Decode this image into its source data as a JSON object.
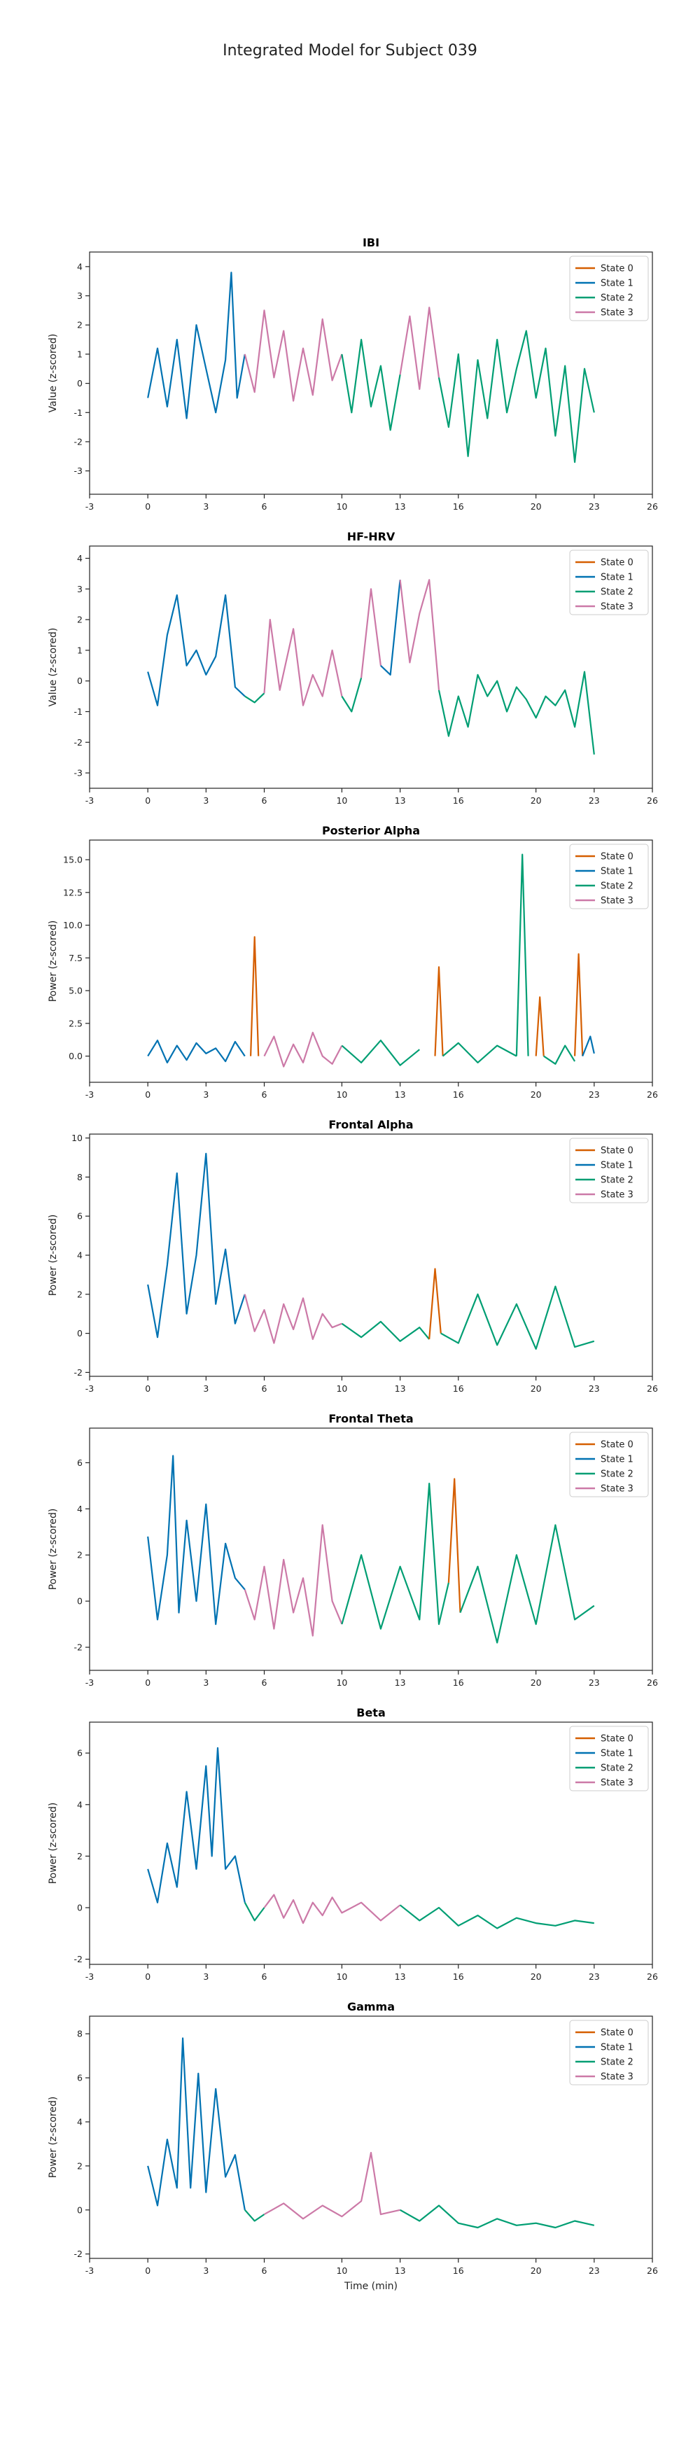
{
  "figure": {
    "title": "Integrated Model for Subject 039"
  },
  "state_colors": {
    "State 0": "#d55e00",
    "State 1": "#0072b2",
    "State 2": "#009e73",
    "State 3": "#cc79a7"
  },
  "chart_data": [
    {
      "type": "line",
      "title": "IBI",
      "xlabel": "",
      "ylabel": "Value (z-scored)",
      "xlim": [
        -3,
        26
      ],
      "ylim": [
        -3.8,
        4.5
      ],
      "xticks": [
        -3,
        0,
        3,
        6,
        10,
        13,
        16,
        20,
        23,
        26
      ],
      "yticks": [
        -3,
        -2,
        -1,
        0,
        1,
        2,
        3,
        4
      ],
      "legend": [
        "State 0",
        "State 1",
        "State 2",
        "State 3"
      ],
      "legend_position": "top-right",
      "segments": [
        {
          "state": "State 1",
          "t": [
            0,
            0.5,
            1,
            1.5,
            2,
            2.5,
            3,
            3.5,
            4,
            4.3,
            4.6,
            5
          ],
          "y": [
            -0.5,
            1.2,
            -0.8,
            1.5,
            -1.2,
            2.0,
            0.5,
            -1.0,
            0.8,
            3.8,
            -0.5,
            1.0
          ]
        },
        {
          "state": "State 3",
          "t": [
            5,
            5.5,
            6,
            6.5,
            7,
            7.5,
            8,
            8.5,
            9,
            9.5,
            10
          ],
          "y": [
            1.0,
            -0.3,
            2.5,
            0.2,
            1.8,
            -0.6,
            1.2,
            -0.4,
            2.2,
            0.1,
            1.0
          ]
        },
        {
          "state": "State 2",
          "t": [
            10,
            10.5,
            11,
            11.5,
            12,
            12.5,
            13
          ],
          "y": [
            1.0,
            -1.0,
            1.5,
            -0.8,
            0.6,
            -1.6,
            0.3
          ]
        },
        {
          "state": "State 3",
          "t": [
            13,
            13.5,
            14,
            14.5,
            15
          ],
          "y": [
            0.3,
            2.3,
            -0.2,
            2.6,
            0.2
          ]
        },
        {
          "state": "State 2",
          "t": [
            15,
            15.5,
            16,
            16.5,
            17,
            17.5,
            18,
            18.5,
            19,
            19.5,
            20,
            20.5,
            21,
            21.5,
            22,
            22.5,
            23
          ],
          "y": [
            0.2,
            -1.5,
            1.0,
            -2.5,
            0.8,
            -1.2,
            1.5,
            -1.0,
            0.5,
            1.8,
            -0.5,
            1.2,
            -1.8,
            0.6,
            -2.7,
            0.5,
            -1.0
          ]
        }
      ]
    },
    {
      "type": "line",
      "title": "HF-HRV",
      "xlabel": "",
      "ylabel": "Value (z-scored)",
      "xlim": [
        -3,
        26
      ],
      "ylim": [
        -3.5,
        4.4
      ],
      "xticks": [
        -3,
        0,
        3,
        6,
        10,
        13,
        16,
        20,
        23,
        26
      ],
      "yticks": [
        -3,
        -2,
        -1,
        0,
        1,
        2,
        3,
        4
      ],
      "legend": [
        "State 0",
        "State 1",
        "State 2",
        "State 3"
      ],
      "legend_position": "top-right",
      "segments": [
        {
          "state": "State 1",
          "t": [
            0,
            0.5,
            1,
            1.5,
            2,
            2.5,
            3,
            3.5,
            4,
            4.5,
            5
          ],
          "y": [
            0.3,
            -0.8,
            1.5,
            2.8,
            0.5,
            1.0,
            0.2,
            0.8,
            2.8,
            -0.2,
            -0.5
          ]
        },
        {
          "state": "State 2",
          "t": [
            5,
            5.5,
            6
          ],
          "y": [
            -0.5,
            -0.7,
            -0.4
          ]
        },
        {
          "state": "State 3",
          "t": [
            6,
            6.3,
            6.8,
            7.5,
            8,
            8.5,
            9,
            9.5,
            10
          ],
          "y": [
            -0.4,
            2.0,
            -0.3,
            1.7,
            -0.8,
            0.2,
            -0.5,
            1.0,
            -0.5
          ]
        },
        {
          "state": "State 2",
          "t": [
            10,
            10.5,
            11
          ],
          "y": [
            -0.5,
            -1.0,
            0.1
          ]
        },
        {
          "state": "State 3",
          "t": [
            11,
            11.5,
            12
          ],
          "y": [
            0.1,
            3.0,
            0.5
          ]
        },
        {
          "state": "State 1",
          "t": [
            12,
            12.5,
            13
          ],
          "y": [
            0.5,
            0.2,
            3.3
          ]
        },
        {
          "state": "State 3",
          "t": [
            13,
            13.5,
            14,
            14.5,
            15
          ],
          "y": [
            3.3,
            0.6,
            2.2,
            3.3,
            -0.3
          ]
        },
        {
          "state": "State 2",
          "t": [
            15,
            15.5,
            16,
            16.5,
            17,
            17.5,
            18,
            18.5,
            19,
            19.5,
            20,
            20.5,
            21,
            21.5,
            22,
            22.5,
            23
          ],
          "y": [
            -0.3,
            -1.8,
            -0.5,
            -1.5,
            0.2,
            -0.5,
            0.0,
            -1.0,
            -0.2,
            -0.6,
            -1.2,
            -0.5,
            -0.8,
            -0.3,
            -1.5,
            0.3,
            -2.4
          ]
        }
      ]
    },
    {
      "type": "line",
      "title": "Posterior Alpha",
      "xlabel": "",
      "ylabel": "Power (z-scored)",
      "xlim": [
        -3,
        26
      ],
      "ylim": [
        -2.0,
        16.5
      ],
      "xticks": [
        -3,
        0,
        3,
        6,
        10,
        13,
        16,
        20,
        23,
        26
      ],
      "yticks": [
        0.0,
        2.5,
        5.0,
        7.5,
        10.0,
        12.5,
        15.0
      ],
      "legend": [
        "State 0",
        "State 1",
        "State 2",
        "State 3"
      ],
      "legend_position": "top-right",
      "segments": [
        {
          "state": "State 1",
          "t": [
            0,
            0.5,
            1,
            1.5,
            2,
            2.5,
            3,
            3.5,
            4,
            4.5,
            5
          ],
          "y": [
            0.0,
            1.2,
            -0.5,
            0.8,
            -0.3,
            1.0,
            0.2,
            0.6,
            -0.4,
            1.1,
            0.0
          ]
        },
        {
          "state": "State 0",
          "t": [
            5.3,
            5.5,
            5.7
          ],
          "y": [
            0.0,
            9.1,
            0.0
          ]
        },
        {
          "state": "State 3",
          "t": [
            6,
            6.5,
            7,
            7.5,
            8,
            8.5,
            9,
            9.5,
            10
          ],
          "y": [
            0.0,
            1.5,
            -0.8,
            0.9,
            -0.5,
            1.8,
            0.0,
            -0.6,
            0.8
          ]
        },
        {
          "state": "State 2",
          "t": [
            10,
            11,
            12,
            13,
            14
          ],
          "y": [
            0.8,
            -0.5,
            1.2,
            -0.7,
            0.5
          ]
        },
        {
          "state": "State 0",
          "t": [
            14.8,
            15,
            15.2
          ],
          "y": [
            0.0,
            6.8,
            0.0
          ]
        },
        {
          "state": "State 2",
          "t": [
            15.2,
            16,
            17,
            18,
            19
          ],
          "y": [
            0.0,
            1.0,
            -0.5,
            0.8,
            0.0
          ]
        },
        {
          "state": "State 2",
          "t": [
            19,
            19.3,
            19.6
          ],
          "y": [
            0.0,
            15.4,
            0.0
          ]
        },
        {
          "state": "State 0",
          "t": [
            20,
            20.2,
            20.4
          ],
          "y": [
            0.0,
            4.5,
            0.0
          ]
        },
        {
          "state": "State 2",
          "t": [
            20.4,
            21,
            21.5,
            22
          ],
          "y": [
            0.0,
            -0.6,
            0.8,
            -0.4
          ]
        },
        {
          "state": "State 0",
          "t": [
            22,
            22.2,
            22.4
          ],
          "y": [
            0.0,
            7.8,
            0.0
          ]
        },
        {
          "state": "State 1",
          "t": [
            22.4,
            22.8,
            23
          ],
          "y": [
            0.0,
            1.5,
            0.2
          ]
        }
      ]
    },
    {
      "type": "line",
      "title": "Frontal Alpha",
      "xlabel": "",
      "ylabel": "Power (z-scored)",
      "xlim": [
        -3,
        26
      ],
      "ylim": [
        -2.2,
        10.2
      ],
      "xticks": [
        -3,
        0,
        3,
        6,
        10,
        13,
        16,
        20,
        23,
        26
      ],
      "yticks": [
        -2,
        0,
        2,
        4,
        6,
        8,
        10
      ],
      "legend": [
        "State 0",
        "State 1",
        "State 2",
        "State 3"
      ],
      "legend_position": "top-right",
      "segments": [
        {
          "state": "State 1",
          "t": [
            0,
            0.5,
            1,
            1.5,
            2,
            2.5,
            3,
            3.5,
            4,
            4.5,
            5
          ],
          "y": [
            2.5,
            -0.2,
            3.5,
            8.2,
            1.0,
            4.0,
            9.2,
            1.5,
            4.3,
            0.5,
            2.0
          ]
        },
        {
          "state": "State 3",
          "t": [
            5,
            5.5,
            6,
            6.5,
            7,
            7.5,
            8,
            8.5,
            9,
            9.5,
            10
          ],
          "y": [
            2.0,
            0.1,
            1.2,
            -0.5,
            1.5,
            0.2,
            1.8,
            -0.3,
            1.0,
            0.3,
            0.5
          ]
        },
        {
          "state": "State 2",
          "t": [
            10,
            11,
            12,
            13,
            14,
            14.5
          ],
          "y": [
            0.5,
            -0.2,
            0.6,
            -0.4,
            0.3,
            -0.3
          ]
        },
        {
          "state": "State 0",
          "t": [
            14.5,
            14.8,
            15.1
          ],
          "y": [
            -0.3,
            3.3,
            0.0
          ]
        },
        {
          "state": "State 2",
          "t": [
            15.1,
            16,
            17,
            18,
            19,
            20,
            21,
            22,
            23
          ],
          "y": [
            0.0,
            -0.5,
            2.0,
            -0.6,
            1.5,
            -0.8,
            2.4,
            -0.7,
            -0.4
          ]
        }
      ]
    },
    {
      "type": "line",
      "title": "Frontal Theta",
      "xlabel": "",
      "ylabel": "Power (z-scored)",
      "xlim": [
        -3,
        26
      ],
      "ylim": [
        -3.0,
        7.5
      ],
      "xticks": [
        -3,
        0,
        3,
        6,
        10,
        13,
        16,
        20,
        23,
        26
      ],
      "yticks": [
        -2,
        0,
        2,
        4,
        6
      ],
      "legend": [
        "State 0",
        "State 1",
        "State 2",
        "State 3"
      ],
      "legend_position": "top-right",
      "segments": [
        {
          "state": "State 1",
          "t": [
            0,
            0.5,
            1,
            1.3,
            1.6,
            2,
            2.5,
            3,
            3.5,
            4,
            4.5,
            5
          ],
          "y": [
            2.8,
            -0.8,
            2.0,
            6.3,
            -0.5,
            3.5,
            0.0,
            4.2,
            -1.0,
            2.5,
            1.0,
            0.5
          ]
        },
        {
          "state": "State 3",
          "t": [
            5,
            5.5,
            6,
            6.5,
            7,
            7.5,
            8,
            8.5,
            9,
            9.5,
            10
          ],
          "y": [
            0.5,
            -0.8,
            1.5,
            -1.2,
            1.8,
            -0.5,
            1.0,
            -1.5,
            3.3,
            0.0,
            -1.0
          ]
        },
        {
          "state": "State 2",
          "t": [
            10,
            11,
            12,
            13,
            14,
            14.5,
            15,
            15.5
          ],
          "y": [
            -1.0,
            2.0,
            -1.2,
            1.5,
            -0.8,
            5.1,
            -1.0,
            0.8
          ]
        },
        {
          "state": "State 0",
          "t": [
            15.5,
            15.8,
            16.1
          ],
          "y": [
            0.8,
            5.3,
            -0.5
          ]
        },
        {
          "state": "State 2",
          "t": [
            16.1,
            17,
            18,
            19,
            20,
            21,
            22,
            23
          ],
          "y": [
            -0.5,
            1.5,
            -1.8,
            2.0,
            -1.0,
            3.3,
            -0.8,
            -0.2
          ]
        }
      ]
    },
    {
      "type": "line",
      "title": "Beta",
      "xlabel": "",
      "ylabel": "Power (z-scored)",
      "xlim": [
        -3,
        26
      ],
      "ylim": [
        -2.2,
        7.2
      ],
      "xticks": [
        -3,
        0,
        3,
        6,
        10,
        13,
        16,
        20,
        23,
        26
      ],
      "yticks": [
        -2,
        0,
        2,
        4,
        6
      ],
      "legend": [
        "State 0",
        "State 1",
        "State 2",
        "State 3"
      ],
      "legend_position": "top-right",
      "segments": [
        {
          "state": "State 1",
          "t": [
            0,
            0.5,
            1,
            1.5,
            2,
            2.5,
            3,
            3.3,
            3.6,
            4,
            4.5,
            5
          ],
          "y": [
            1.5,
            0.2,
            2.5,
            0.8,
            4.5,
            1.5,
            5.5,
            2.0,
            6.2,
            1.5,
            2.0,
            0.2
          ]
        },
        {
          "state": "State 2",
          "t": [
            5,
            5.5,
            6
          ],
          "y": [
            0.2,
            -0.5,
            0.0
          ]
        },
        {
          "state": "State 3",
          "t": [
            6,
            6.5,
            7,
            7.5,
            8,
            8.5,
            9,
            9.5,
            10,
            11,
            12,
            13
          ],
          "y": [
            0.0,
            0.5,
            -0.4,
            0.3,
            -0.6,
            0.2,
            -0.3,
            0.4,
            -0.2,
            0.2,
            -0.5,
            0.1
          ]
        },
        {
          "state": "State 2",
          "t": [
            13,
            14,
            15,
            16,
            17,
            18,
            19,
            20,
            21,
            22,
            23
          ],
          "y": [
            0.1,
            -0.5,
            0.0,
            -0.7,
            -0.3,
            -0.8,
            -0.4,
            -0.6,
            -0.7,
            -0.5,
            -0.6
          ]
        }
      ]
    },
    {
      "type": "line",
      "title": "Gamma",
      "xlabel": "Time (min)",
      "ylabel": "Power (z-scored)",
      "xlim": [
        -3,
        26
      ],
      "ylim": [
        -2.2,
        8.8
      ],
      "xticks": [
        -3,
        0,
        3,
        6,
        10,
        13,
        16,
        20,
        23,
        26
      ],
      "yticks": [
        -2,
        0,
        2,
        4,
        6,
        8
      ],
      "legend": [
        "State 0",
        "State 1",
        "State 2",
        "State 3"
      ],
      "legend_position": "top-right",
      "segments": [
        {
          "state": "State 1",
          "t": [
            0,
            0.5,
            1,
            1.5,
            1.8,
            2.2,
            2.6,
            3,
            3.5,
            4,
            4.5,
            5
          ],
          "y": [
            2.0,
            0.2,
            3.2,
            1.0,
            7.8,
            1.0,
            6.2,
            0.8,
            5.5,
            1.5,
            2.5,
            0.0
          ]
        },
        {
          "state": "State 2",
          "t": [
            5,
            5.5,
            6
          ],
          "y": [
            0.0,
            -0.5,
            -0.2
          ]
        },
        {
          "state": "State 3",
          "t": [
            6,
            7,
            8,
            9,
            10,
            11,
            11.5,
            12,
            13
          ],
          "y": [
            -0.2,
            0.3,
            -0.4,
            0.2,
            -0.3,
            0.4,
            2.6,
            -0.2,
            0.0
          ]
        },
        {
          "state": "State 2",
          "t": [
            13,
            14,
            15,
            16,
            17,
            18,
            19,
            20,
            21,
            22,
            23
          ],
          "y": [
            0.0,
            -0.5,
            0.2,
            -0.6,
            -0.8,
            -0.4,
            -0.7,
            -0.6,
            -0.8,
            -0.5,
            -0.7
          ]
        }
      ]
    }
  ]
}
